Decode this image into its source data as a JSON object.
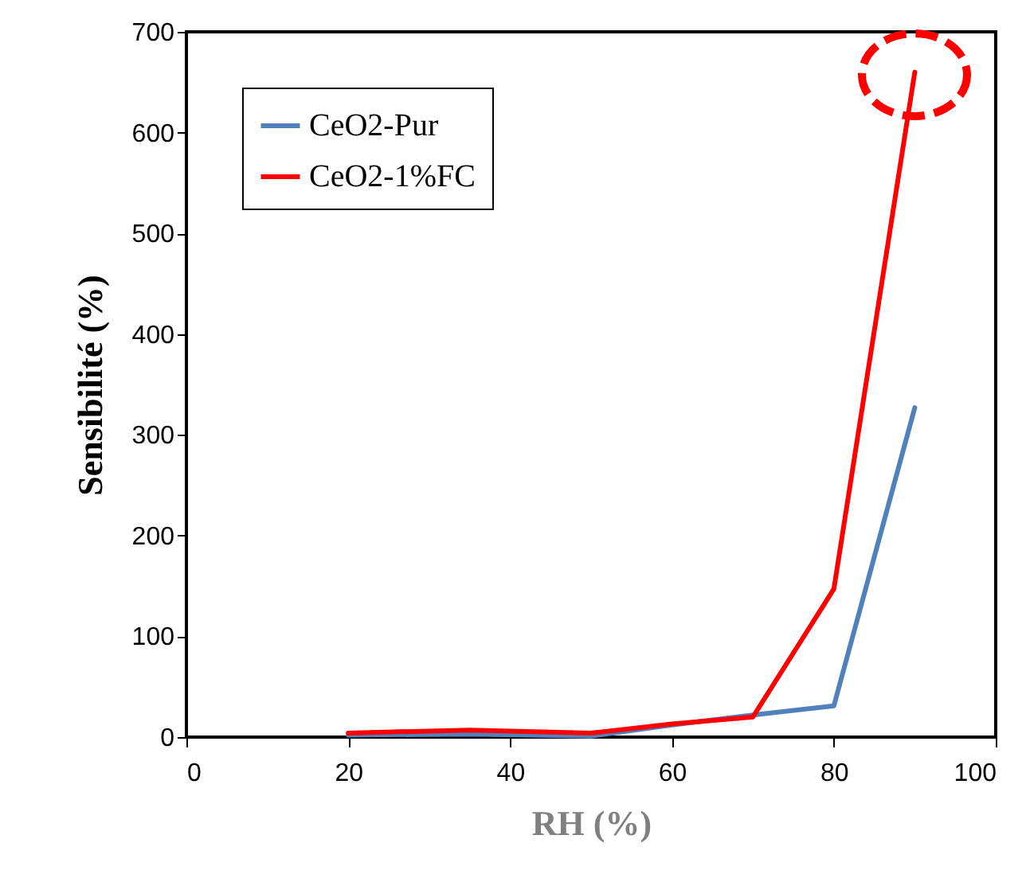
{
  "chart_data": {
    "type": "line",
    "xlabel": "RH (%)",
    "ylabel": "Sensibilité (%)",
    "x": [
      20,
      35,
      50,
      60,
      70,
      80,
      90
    ],
    "series": [
      {
        "name": "CeO2-Pur",
        "color": "#4f81bd",
        "values": [
          2,
          3,
          1,
          12,
          22,
          31,
          327
        ]
      },
      {
        "name": "CeO2-1%FC",
        "color": "#ff0000",
        "values": [
          4,
          7,
          4,
          13,
          20,
          147,
          660
        ]
      }
    ],
    "xlim": [
      0,
      100
    ],
    "xticks": [
      0,
      20,
      40,
      60,
      80,
      100
    ],
    "ylim": [
      0,
      700
    ],
    "yticks": [
      0,
      100,
      200,
      300,
      400,
      500,
      600,
      700
    ],
    "grid": false,
    "legend": "top left",
    "marker": "none",
    "line_style": "solid"
  }
}
